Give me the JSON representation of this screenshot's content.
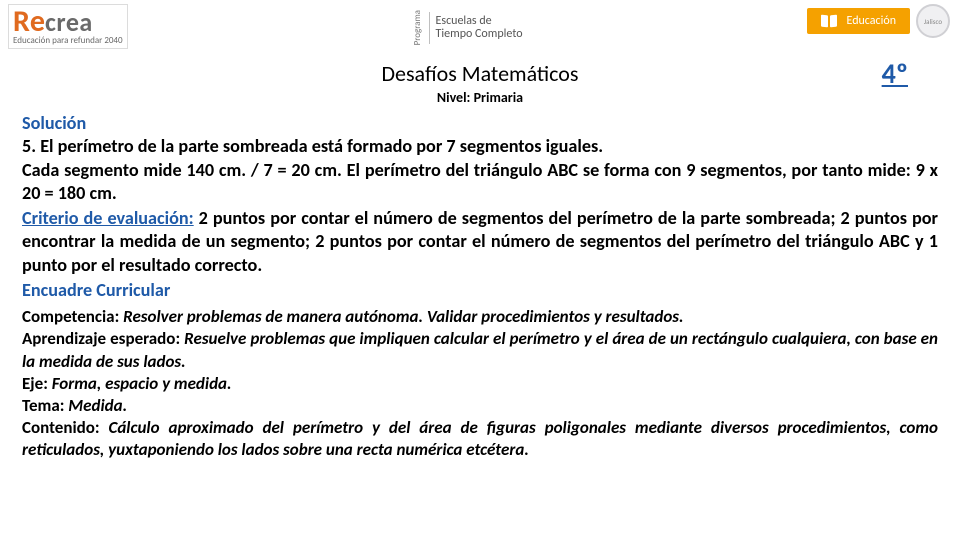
{
  "header": {
    "recrea_r": "R",
    "recrea_e": "e",
    "recrea_rest": "crea",
    "recrea_sub": "Educación para refundar 2040",
    "programa_side": "Programa",
    "programa_line1": "Escuelas de",
    "programa_line2": "Tiempo Completo",
    "badge_text": "Educación",
    "seal_text": "Jalisco"
  },
  "title": {
    "main": "Desafíos Matemáticos",
    "grade": "4º",
    "level": "Nivel: Primaria"
  },
  "solution": {
    "heading": "Solución",
    "line1": "5.  El perímetro de la parte sombreada está formado por 7 segmentos iguales.",
    "line2": "Cada segmento mide 140 cm. / 7 = 20 cm. El perímetro del triángulo ABC se forma con 9 segmentos, por tanto mide: 9 x 20 = 180 cm.",
    "crit_label": "Criterio de evaluación:",
    "crit_text": " 2 puntos por contar el número de segmentos del perímetro de la parte sombreada; 2 puntos por encontrar la medida de un segmento; 2 puntos por contar el número de segmentos del perímetro del triángulo ABC y 1 punto por el resultado correcto."
  },
  "curricular": {
    "heading": "Encuadre Curricular",
    "comp_label": "Competencia: ",
    "comp_text": "Resolver problemas de manera autónoma. Validar procedimientos y resultados.",
    "apr_label": "Aprendizaje esperado: ",
    "apr_text": "Resuelve problemas que impliquen calcular el perímetro y el área de un rectángulo cualquiera, con base en la medida de sus lados.",
    "eje_label": "Eje: ",
    "eje_text": "Forma, espacio y medida.",
    "tema_label": "Tema: ",
    "tema_text": "Medida.",
    "cont_label": "Contenido: ",
    "cont_text": "Cálculo aproximado del perímetro y del área de figuras poligonales mediante diversos procedimientos, como reticulados, yuxtaponiendo los lados sobre una recta numérica etcétera."
  }
}
